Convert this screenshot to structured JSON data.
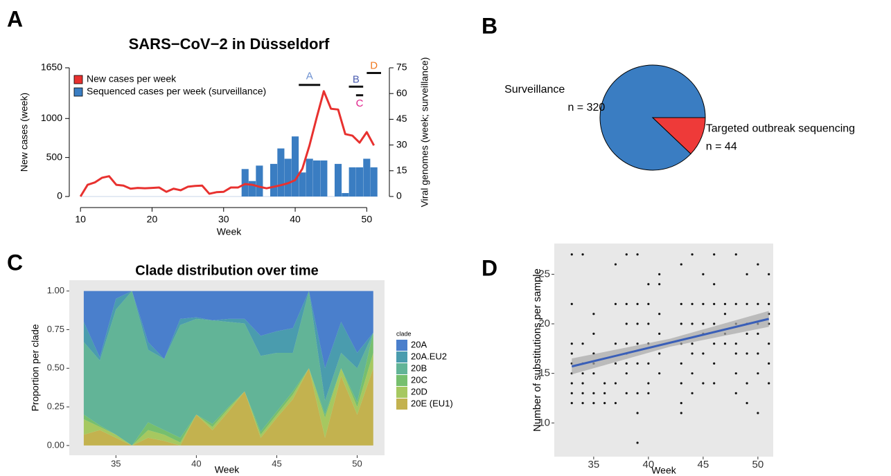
{
  "chart_data": [
    {
      "panel": "A",
      "type": "combo",
      "title": "SARS−CoV−2 in Düsseldorf",
      "xlabel": "Week",
      "ylabel": "New cases (week)",
      "y2label": "Viral genomes (week; surveillance)",
      "x": [
        10,
        11,
        12,
        13,
        14,
        15,
        16,
        17,
        18,
        19,
        20,
        21,
        22,
        23,
        24,
        25,
        26,
        27,
        28,
        29,
        30,
        31,
        32,
        33,
        34,
        35,
        36,
        37,
        38,
        39,
        40,
        41,
        42,
        43,
        44,
        45,
        46,
        47,
        48,
        49,
        50,
        51
      ],
      "xlim": [
        9.5,
        52
      ],
      "xticks": [
        10,
        20,
        30,
        40,
        50
      ],
      "ylim": [
        0,
        1650
      ],
      "yticks": [
        0,
        500,
        1000,
        1650
      ],
      "y2lim": [
        0,
        75
      ],
      "y2ticks": [
        0,
        15,
        30,
        45,
        60,
        75
      ],
      "legend": "top-left",
      "series": [
        {
          "name": "New cases per week",
          "type": "line",
          "color": "#e8312f",
          "values": [
            0,
            150,
            180,
            240,
            260,
            150,
            140,
            100,
            110,
            105,
            110,
            115,
            60,
            100,
            80,
            125,
            135,
            140,
            35,
            55,
            60,
            115,
            115,
            160,
            150,
            125,
            105,
            125,
            145,
            170,
            210,
            355,
            655,
            1010,
            1350,
            1125,
            1115,
            800,
            780,
            690,
            825,
            655
          ]
        },
        {
          "name": "Sequenced cases per week (surveillance)",
          "type": "bar",
          "axis": "y2",
          "color": "#3a7dc2",
          "values": [
            null,
            null,
            null,
            null,
            null,
            null,
            null,
            null,
            null,
            null,
            null,
            null,
            null,
            null,
            null,
            null,
            null,
            null,
            null,
            null,
            null,
            null,
            null,
            16,
            9,
            18,
            null,
            19,
            28,
            22,
            35,
            14,
            22,
            21,
            21,
            null,
            19,
            2,
            17,
            17,
            22,
            17
          ]
        }
      ],
      "annotations": [
        {
          "text": "A",
          "color": "#6b8fd0",
          "x": [
            40.5,
            43.5
          ],
          "y": 65,
          "text_y": 70
        },
        {
          "text": "B",
          "color": "#4b5db0",
          "x": [
            47.5,
            49.5
          ],
          "y": 64,
          "text_y": 68
        },
        {
          "text": "C",
          "color": "#e0208a",
          "x": [
            48.5,
            49.5
          ],
          "y": 59,
          "text_y": 54
        },
        {
          "text": "D",
          "color": "#f07820",
          "x": [
            50,
            52
          ],
          "y": 72,
          "text_y": 76
        }
      ]
    },
    {
      "panel": "B",
      "type": "pie",
      "categories": [
        "Surveillance",
        "Targeted outbreak sequencing"
      ],
      "values": [
        320,
        44
      ],
      "value_labels": [
        "n =  320",
        "n =  44"
      ],
      "colors": [
        "#3a7dc2",
        "#ee3a39"
      ]
    },
    {
      "panel": "C",
      "type": "area",
      "stacked": true,
      "title": "Clade distribution over time",
      "xlabel": "Week",
      "ylabel": "Proportion per clade",
      "legend_title": "clade",
      "x": [
        33,
        34,
        35,
        36,
        37,
        38,
        39,
        40,
        41,
        42,
        43,
        44,
        45,
        46,
        47,
        48,
        49,
        50,
        51
      ],
      "xlim": [
        32.1,
        51.7
      ],
      "xticks": [
        35,
        40,
        45,
        50
      ],
      "ylim": [
        -0.063,
        1.07
      ],
      "yticks": [
        {
          "value": 0,
          "label": "0.00"
        },
        {
          "value": 0.25,
          "label": "0.25"
        },
        {
          "value": 0.5,
          "label": "0.50"
        },
        {
          "value": 0.75,
          "label": "0.75"
        },
        {
          "value": 1,
          "label": "1.00"
        }
      ],
      "series": [
        {
          "name": "20A",
          "color": "#4a7fcc",
          "values": [
            0.2,
            0.43,
            0.05,
            0,
            0.33,
            0.44,
            0.18,
            0.17,
            0.19,
            0.18,
            0.18,
            0.29,
            0.26,
            0.24,
            0,
            0.5,
            0.2,
            0.4,
            0.27
          ]
        },
        {
          "name": "20A.EU2",
          "color": "#4a9cae",
          "values": [
            0.13,
            0.02,
            0.07,
            0,
            0.05,
            0,
            0.04,
            0.01,
            0,
            0.02,
            0.03,
            0.13,
            0.14,
            0.16,
            0,
            0.21,
            0.2,
            0.1,
            0
          ]
        },
        {
          "name": "20B",
          "color": "#62b497",
          "values": [
            0.47,
            0.42,
            0.81,
            1,
            0.47,
            0.46,
            0.73,
            0.62,
            0.67,
            0.55,
            0.44,
            0.49,
            0.38,
            0.25,
            0.5,
            0.09,
            0.1,
            0.22,
            0
          ]
        },
        {
          "name": "20C",
          "color": "#76bf6e",
          "values": [
            0.03,
            0.01,
            0,
            0,
            0.05,
            0.03,
            0.03,
            0,
            0.02,
            0.01,
            0,
            0.02,
            0.02,
            0.02,
            0,
            0.02,
            0,
            0.03,
            0.13
          ]
        },
        {
          "name": "20D",
          "color": "#a6c860",
          "values": [
            0.1,
            0.02,
            0.02,
            0,
            0.05,
            0.04,
            0.02,
            0,
            0.02,
            0.02,
            0,
            0.02,
            0.02,
            0.03,
            0,
            0.13,
            0.05,
            0.05,
            0.1
          ]
        },
        {
          "name": "20E (EU1)",
          "color": "#c3b24f",
          "values": [
            0.07,
            0.1,
            0.05,
            0,
            0.05,
            0.03,
            0,
            0.2,
            0.1,
            0.22,
            0.35,
            0.05,
            0.18,
            0.3,
            0.5,
            0.05,
            0.45,
            0.2,
            0.5
          ]
        }
      ]
    },
    {
      "panel": "D",
      "type": "scatter",
      "xlabel": "Week",
      "ylabel": "Number of substitutions per sample",
      "color": "#111111",
      "xlim": [
        31.4,
        51.4
      ],
      "xticks": [
        35,
        40,
        45,
        50
      ],
      "ylim": [
        6.6,
        28.1
      ],
      "yticks": [
        10,
        15,
        20,
        25
      ],
      "x": [
        33,
        33,
        33,
        33,
        33,
        33,
        33,
        33,
        33,
        34,
        34,
        34,
        34,
        34,
        34,
        34,
        35,
        35,
        35,
        35,
        35,
        35,
        35,
        36,
        36,
        36,
        37,
        37,
        37,
        37,
        37,
        37,
        38,
        38,
        38,
        38,
        38,
        38,
        38,
        38,
        39,
        39,
        39,
        39,
        39,
        39,
        39,
        39,
        40,
        40,
        40,
        40,
        40,
        40,
        40,
        41,
        41,
        41,
        41,
        41,
        41,
        43,
        43,
        43,
        43,
        43,
        43,
        43,
        43,
        44,
        44,
        44,
        44,
        44,
        44,
        44,
        45,
        45,
        45,
        45,
        45,
        45,
        46,
        46,
        46,
        46,
        46,
        46,
        46,
        47,
        47,
        47,
        47,
        48,
        48,
        48,
        48,
        48,
        48,
        48,
        49,
        49,
        49,
        49,
        49,
        49,
        49,
        50,
        50,
        50,
        50,
        50,
        50,
        50,
        51,
        51,
        51,
        51,
        51,
        51,
        51
      ],
      "y": [
        27,
        22,
        18,
        17,
        16,
        15,
        14,
        13,
        12,
        27,
        18,
        16,
        15,
        14,
        13,
        12,
        21,
        19,
        17,
        16,
        15,
        13,
        12,
        14,
        13,
        12,
        26,
        22,
        18,
        16,
        14,
        12,
        27,
        22,
        20,
        18,
        17,
        16,
        15,
        13,
        27,
        22,
        20,
        18,
        16,
        13,
        11,
        8,
        24,
        22,
        20,
        18,
        16,
        14,
        13,
        25,
        24,
        21,
        19,
        17,
        15,
        26,
        22,
        20,
        18,
        16,
        14,
        12,
        11,
        27,
        22,
        20,
        18,
        17,
        15,
        13,
        25,
        22,
        20,
        19,
        17,
        14,
        27,
        24,
        22,
        20,
        18,
        16,
        14,
        22,
        21,
        19,
        18,
        27,
        22,
        20,
        18,
        17,
        15,
        13,
        25,
        22,
        20,
        19,
        17,
        14,
        12,
        26,
        22,
        20,
        19,
        17,
        15,
        11,
        25,
        22,
        21,
        20,
        18,
        16,
        14
      ],
      "trend": {
        "x": [
          33,
          42,
          51
        ],
        "y": [
          15.7,
          18.1,
          20.5
        ],
        "lower": [
          14.9,
          17.7,
          19.7
        ],
        "upper": [
          16.5,
          18.5,
          21.3
        ],
        "color": "#3a5fb8"
      }
    }
  ]
}
